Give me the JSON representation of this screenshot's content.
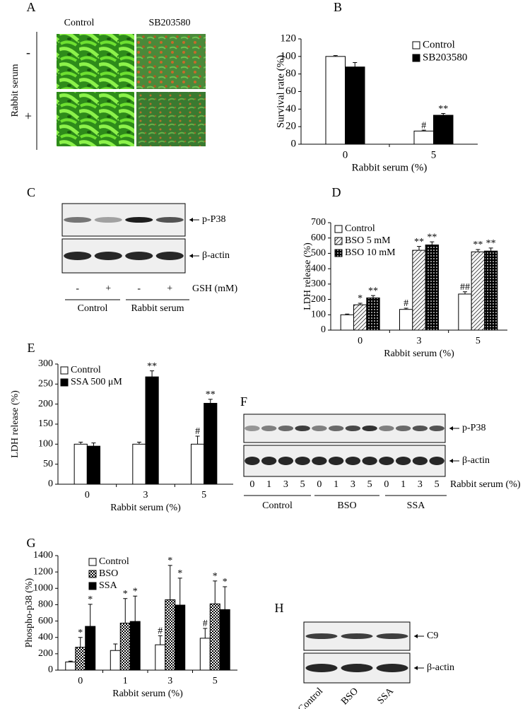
{
  "panel_labels": [
    "A",
    "B",
    "C",
    "D",
    "E",
    "F",
    "G",
    "H"
  ],
  "panel_a": {
    "columns": [
      "Control",
      "SB203580"
    ],
    "rows": [
      "-",
      "+"
    ],
    "row_label": "Rabbit serum"
  },
  "panel_c": {
    "bands": [
      "p-P38",
      "β-actin"
    ],
    "lanes": [
      "-",
      "+",
      "-",
      "+"
    ],
    "lane_unit": "GSH (mM)",
    "groups": [
      "Control",
      "Rabbit serum"
    ]
  },
  "panel_f": {
    "bands": [
      "p-P38",
      "β-actin"
    ],
    "lanes": [
      "0",
      "1",
      "3",
      "5",
      "0",
      "1",
      "3",
      "5",
      "0",
      "1",
      "3",
      "5"
    ],
    "lane_unit": "Rabbit serum (%)",
    "groups": [
      "Control",
      "BSO",
      "SSA"
    ]
  },
  "panel_h": {
    "bands": [
      "C9",
      "β-actin"
    ],
    "lanes": [
      "Control",
      "BSO",
      "SSA"
    ]
  },
  "chart_data": [
    {
      "type": "bar",
      "categories": [
        "0",
        "5"
      ],
      "xlabel": "Rabbit serum (%)",
      "ylabel": "Survival rate (%)",
      "ylim": [
        0,
        120
      ],
      "yticks": [
        0,
        20,
        40,
        60,
        80,
        100,
        120
      ],
      "legend": "upper right",
      "series": [
        {
          "name": "Control",
          "color": "#ffffff",
          "values": [
            100,
            15
          ],
          "errors": [
            1,
            1
          ],
          "annotations": [
            null,
            "#"
          ]
        },
        {
          "name": "SB203580",
          "color": "#000000",
          "values": [
            88,
            33
          ],
          "errors": [
            5,
            2
          ],
          "annotations": [
            null,
            "**"
          ]
        }
      ]
    },
    {
      "type": "bar",
      "categories": [
        "0",
        "3",
        "5"
      ],
      "xlabel": "Rabbit serum (%)",
      "ylabel": "LDH release (%)",
      "ylim": [
        0,
        700
      ],
      "yticks": [
        0,
        100,
        200,
        300,
        400,
        500,
        600,
        700
      ],
      "legend": "upper left",
      "series": [
        {
          "name": "Control",
          "color": "#ffffff",
          "values": [
            100,
            135,
            235
          ],
          "errors": [
            5,
            8,
            15
          ],
          "annotations": [
            null,
            "#",
            "##"
          ]
        },
        {
          "name": "BSO 5 mM",
          "color": "#000000",
          "pattern": "hatch",
          "values": [
            165,
            520,
            510
          ],
          "errors": [
            10,
            25,
            15
          ],
          "annotations": [
            "*",
            "**",
            "**"
          ]
        },
        {
          "name": "BSO 10 mM",
          "color": "#000000",
          "pattern": "dots",
          "values": [
            210,
            555,
            515
          ],
          "errors": [
            15,
            20,
            20
          ],
          "annotations": [
            "**",
            "**",
            "**"
          ]
        }
      ]
    },
    {
      "type": "bar",
      "categories": [
        "0",
        "3",
        "5"
      ],
      "xlabel": "Rabbit serum (%)",
      "ylabel": "LDH release (%)",
      "ylim": [
        0,
        300
      ],
      "yticks": [
        0,
        50,
        100,
        150,
        200,
        250,
        300
      ],
      "legend": "upper left",
      "series": [
        {
          "name": "Control",
          "color": "#ffffff",
          "values": [
            100,
            100,
            100
          ],
          "errors": [
            5,
            5,
            20
          ],
          "annotations": [
            null,
            null,
            "#"
          ]
        },
        {
          "name": "SSA 500 μM",
          "color": "#000000",
          "values": [
            95,
            268,
            202
          ],
          "errors": [
            8,
            15,
            10
          ],
          "annotations": [
            null,
            "**",
            "**"
          ]
        }
      ]
    },
    {
      "type": "bar",
      "categories": [
        "0",
        "1",
        "3",
        "5"
      ],
      "xlabel": "Rabbit serum (%)",
      "ylabel": "Phospho-p38 (%)",
      "ylim": [
        0,
        1400
      ],
      "yticks": [
        0,
        200,
        400,
        600,
        800,
        1000,
        1200,
        1400
      ],
      "legend": "upper left",
      "series": [
        {
          "name": "Control",
          "color": "#ffffff",
          "values": [
            100,
            240,
            310,
            390
          ],
          "errors": [
            10,
            80,
            110,
            120
          ],
          "annotations": [
            null,
            null,
            "#",
            "#"
          ]
        },
        {
          "name": "BSO",
          "color": "#000000",
          "pattern": "checker",
          "values": [
            280,
            575,
            860,
            810
          ],
          "errors": [
            120,
            300,
            420,
            280
          ],
          "annotations": [
            "*",
            "*",
            "*",
            "*"
          ]
        },
        {
          "name": "SSA",
          "color": "#000000",
          "values": [
            535,
            595,
            795,
            740
          ],
          "errors": [
            270,
            310,
            330,
            280
          ],
          "annotations": [
            "*",
            "*",
            "*",
            "*"
          ]
        }
      ]
    }
  ]
}
